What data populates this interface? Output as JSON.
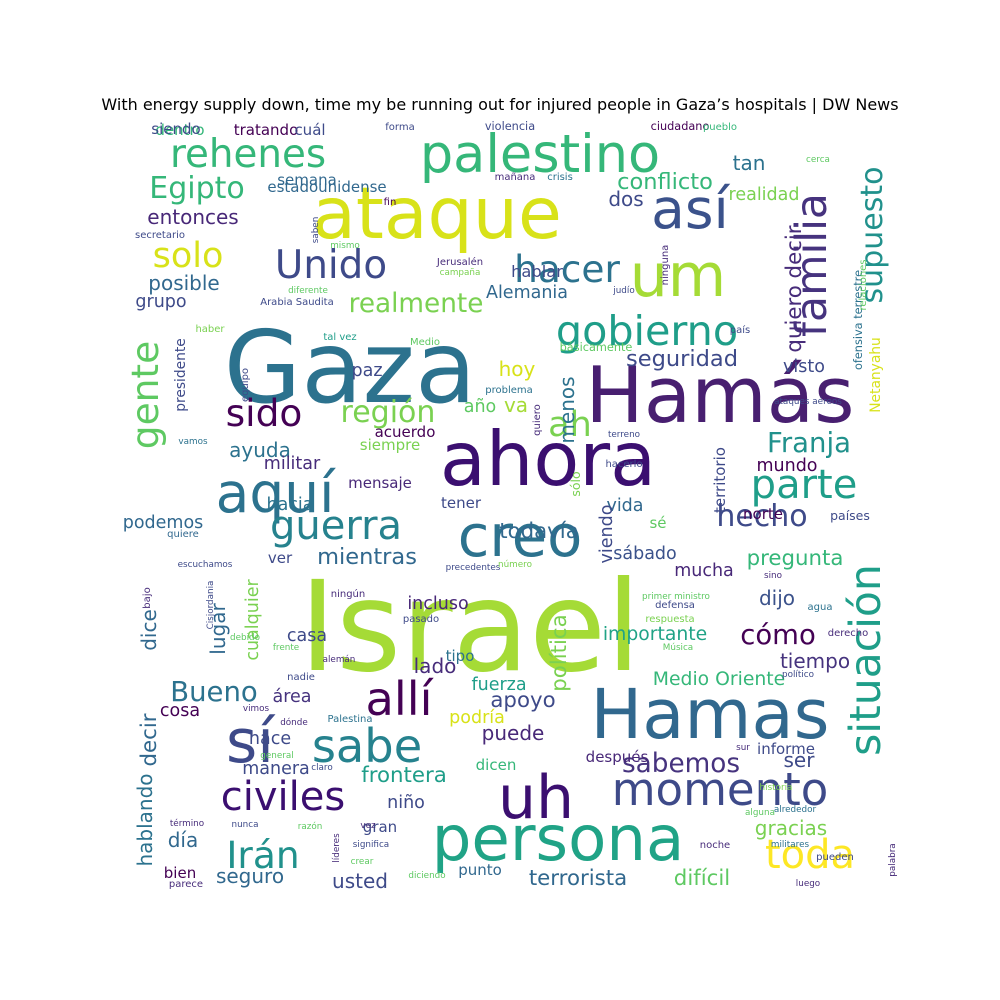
{
  "chart_data": {
    "type": "wordcloud",
    "title": "With energy supply down, time my be running out for injured people in Gaza’s hospitals | DW News",
    "words": [
      {
        "text": "Israel",
        "weight": 100,
        "color": "#a5db36"
      },
      {
        "text": "Gaza",
        "weight": 80,
        "color": "#2c728e"
      },
      {
        "text": "Hamás",
        "weight": 62,
        "color": "#481f70"
      },
      {
        "text": "ahora",
        "weight": 60,
        "color": "#3b0f70"
      },
      {
        "text": "ataque",
        "weight": 57,
        "color": "#d8e219"
      },
      {
        "text": "Hamas",
        "weight": 55,
        "color": "#31688e"
      },
      {
        "text": "persona",
        "weight": 50,
        "color": "#20a386"
      },
      {
        "text": "uh",
        "weight": 48,
        "color": "#3b0f70"
      },
      {
        "text": "um",
        "weight": 48,
        "color": "#a5db36"
      },
      {
        "text": "sí",
        "weight": 48,
        "color": "#3e4a89"
      },
      {
        "text": "creo",
        "weight": 46,
        "color": "#2c728e"
      },
      {
        "text": "así",
        "weight": 44,
        "color": "#3b528b"
      },
      {
        "text": "aquí",
        "weight": 44,
        "color": "#2c728e"
      },
      {
        "text": "palestino",
        "weight": 42,
        "color": "#35b779"
      },
      {
        "text": "allí",
        "weight": 37,
        "color": "#440154"
      },
      {
        "text": "sabe",
        "weight": 37,
        "color": "#26828e"
      },
      {
        "text": "momento",
        "weight": 36,
        "color": "#3e4a89"
      },
      {
        "text": "familia",
        "weight": 34,
        "color": "#46337e"
      },
      {
        "text": "situación",
        "weight": 34,
        "color": "#1f9e89"
      },
      {
        "text": "gobierno",
        "weight": 33,
        "color": "#1f9e89"
      },
      {
        "text": "civiles",
        "weight": 32,
        "color": "#3b0f70"
      },
      {
        "text": "parte",
        "weight": 32,
        "color": "#1f9e89"
      },
      {
        "text": "guerra",
        "weight": 32,
        "color": "#26828e"
      },
      {
        "text": "toda",
        "weight": 32,
        "color": "#fde725"
      },
      {
        "text": "Unido",
        "weight": 31,
        "color": "#3e4a89"
      },
      {
        "text": "rehenes",
        "weight": 31,
        "color": "#35b779"
      },
      {
        "text": "hacer",
        "weight": 30,
        "color": "#2c728e"
      },
      {
        "text": "gente",
        "weight": 30,
        "color": "#5ec962"
      },
      {
        "text": "sido",
        "weight": 30,
        "color": "#440154"
      },
      {
        "text": "Irán",
        "weight": 30,
        "color": "#21918c"
      },
      {
        "text": "solo",
        "weight": 28,
        "color": "#d8e219"
      },
      {
        "text": "ah",
        "weight": 28,
        "color": "#7ad151"
      },
      {
        "text": "región",
        "weight": 24,
        "color": "#7ad151"
      },
      {
        "text": "Egipto",
        "weight": 24,
        "color": "#35b779"
      },
      {
        "text": "supuesto",
        "weight": 24,
        "color": "#21918c"
      },
      {
        "text": "hecho",
        "weight": 24,
        "color": "#3e4a89"
      },
      {
        "text": "Franja",
        "weight": 22,
        "color": "#21918c"
      },
      {
        "text": "Bueno",
        "weight": 22,
        "color": "#2c728e"
      },
      {
        "text": "cómo",
        "weight": 22,
        "color": "#440154"
      },
      {
        "text": "sabemos",
        "weight": 21,
        "color": "#46337e"
      },
      {
        "text": "realmente",
        "weight": 21,
        "color": "#7ad151"
      },
      {
        "text": "mientras",
        "weight": 18,
        "color": "#31688e"
      },
      {
        "text": "seguridad",
        "weight": 18,
        "color": "#3e4a89"
      },
      {
        "text": "conflicto",
        "weight": 18,
        "color": "#35b779"
      },
      {
        "text": "pregunta",
        "weight": 17,
        "color": "#35b779"
      },
      {
        "text": "todavía",
        "weight": 17,
        "color": "#31688e"
      },
      {
        "text": "política",
        "weight": 17,
        "color": "#7ad151"
      },
      {
        "text": "quiero decir",
        "weight": 17,
        "color": "#472c7a"
      },
      {
        "text": "apoyo",
        "weight": 17,
        "color": "#3e4a89"
      },
      {
        "text": "frontera",
        "weight": 17,
        "color": "#1f9e89"
      },
      {
        "text": "terrorista",
        "weight": 17,
        "color": "#31688e"
      },
      {
        "text": "difícil",
        "weight": 17,
        "color": "#5ec962"
      },
      {
        "text": "decir",
        "weight": 17,
        "color": "#31688e"
      },
      {
        "text": "hablando",
        "weight": 16,
        "color": "#2c728e"
      },
      {
        "text": "posible",
        "weight": 16,
        "color": "#31688e"
      },
      {
        "text": "entonces",
        "weight": 16,
        "color": "#482878"
      },
      {
        "text": "dos",
        "weight": 16,
        "color": "#3e4a89"
      },
      {
        "text": "tan",
        "weight": 16,
        "color": "#2c728e"
      },
      {
        "text": "hoy",
        "weight": 16,
        "color": "#d8e219"
      },
      {
        "text": "va",
        "weight": 16,
        "color": "#a5db36"
      },
      {
        "text": "lugar",
        "weight": 16,
        "color": "#31688e"
      },
      {
        "text": "dijo",
        "weight": 16,
        "color": "#3b528b"
      },
      {
        "text": "tiempo",
        "weight": 16,
        "color": "#46337e"
      },
      {
        "text": "usted",
        "weight": 16,
        "color": "#3e4a89"
      },
      {
        "text": "seguro",
        "weight": 16,
        "color": "#31688e"
      },
      {
        "text": "día",
        "weight": 16,
        "color": "#31688e"
      },
      {
        "text": "gracias",
        "weight": 16,
        "color": "#7ad151"
      },
      {
        "text": "ser",
        "weight": 16,
        "color": "#3e4a89"
      },
      {
        "text": "puede",
        "weight": 16,
        "color": "#482878"
      },
      {
        "text": "dice",
        "weight": 16,
        "color": "#31688e"
      },
      {
        "text": "lado",
        "weight": 16,
        "color": "#472c7a"
      },
      {
        "text": "menos",
        "weight": 16,
        "color": "#2c728e"
      },
      {
        "text": "ayuda",
        "weight": 16,
        "color": "#2c728e"
      },
      {
        "text": "Medio Oriente",
        "weight": 15,
        "color": "#35b779"
      },
      {
        "text": "importante",
        "weight": 15,
        "color": "#20a386"
      },
      {
        "text": "realidad",
        "weight": 14,
        "color": "#7ad151"
      },
      {
        "text": "grupo",
        "weight": 14,
        "color": "#3e4a89"
      },
      {
        "text": "paz",
        "weight": 14,
        "color": "#3e4a89"
      },
      {
        "text": "militar",
        "weight": 14,
        "color": "#472c7a"
      },
      {
        "text": "hacia",
        "weight": 14,
        "color": "#2c728e"
      },
      {
        "text": "podemos",
        "weight": 14,
        "color": "#31688e"
      },
      {
        "text": "incluso",
        "weight": 14,
        "color": "#482878"
      },
      {
        "text": "cualquier",
        "weight": 14,
        "color": "#7ad151"
      },
      {
        "text": "casa",
        "weight": 14,
        "color": "#3e4a89"
      },
      {
        "text": "fuerza",
        "weight": 14,
        "color": "#1f9e89"
      },
      {
        "text": "área",
        "weight": 14,
        "color": "#46337e"
      },
      {
        "text": "cosa",
        "weight": 14,
        "color": "#440154"
      },
      {
        "text": "hace",
        "weight": 14,
        "color": "#3e4a89"
      },
      {
        "text": "podría",
        "weight": 14,
        "color": "#d8e219"
      },
      {
        "text": "manera",
        "weight": 14,
        "color": "#3e4a89"
      },
      {
        "text": "niño",
        "weight": 14,
        "color": "#3e4a89"
      },
      {
        "text": "sábado",
        "weight": 14,
        "color": "#3b528b"
      },
      {
        "text": "mucha",
        "weight": 14,
        "color": "#482878"
      },
      {
        "text": "vida",
        "weight": 14,
        "color": "#31688e"
      },
      {
        "text": "viendo",
        "weight": 14,
        "color": "#3e4a89"
      },
      {
        "text": "año",
        "weight": 14,
        "color": "#5ec962"
      },
      {
        "text": "visto",
        "weight": 14,
        "color": "#3e4a89"
      },
      {
        "text": "mundo",
        "weight": 14,
        "color": "#440154"
      },
      {
        "text": "Alemania",
        "weight": 14,
        "color": "#31688e"
      },
      {
        "text": "hablar",
        "weight": 13,
        "color": "#3e4a89"
      },
      {
        "text": "estadounidense",
        "weight": 12,
        "color": "#31688e"
      },
      {
        "text": "tratando",
        "weight": 12,
        "color": "#440154"
      },
      {
        "text": "dentro",
        "weight": 12,
        "color": "#35b779"
      },
      {
        "text": "cuál",
        "weight": 12,
        "color": "#3e4a89"
      },
      {
        "text": "semana",
        "weight": 12,
        "color": "#31688e"
      },
      {
        "text": "siendo",
        "weight": 12,
        "color": "#3e4a89"
      },
      {
        "text": "siempre",
        "weight": 12,
        "color": "#7ad151"
      },
      {
        "text": "acuerdo",
        "weight": 12,
        "color": "#440154"
      },
      {
        "text": "mensaje",
        "weight": 12,
        "color": "#482878"
      },
      {
        "text": "tener",
        "weight": 12,
        "color": "#3e4a89"
      },
      {
        "text": "ver",
        "weight": 12,
        "color": "#3e4a89"
      },
      {
        "text": "tipo",
        "weight": 12,
        "color": "#2c728e"
      },
      {
        "text": "informe",
        "weight": 12,
        "color": "#3e4a89"
      },
      {
        "text": "dicen",
        "weight": 12,
        "color": "#35b779"
      },
      {
        "text": "después",
        "weight": 12,
        "color": "#482878"
      },
      {
        "text": "norte",
        "weight": 12,
        "color": "#440154"
      },
      {
        "text": "territorio",
        "weight": 12,
        "color": "#3e4a89"
      },
      {
        "text": "presidente",
        "weight": 11,
        "color": "#3e4a89"
      },
      {
        "text": "Netanyahu",
        "weight": 11,
        "color": "#d8e219"
      },
      {
        "text": "sólo",
        "weight": 10,
        "color": "#7ad151"
      },
      {
        "text": "punto",
        "weight": 12,
        "color": "#31688e"
      },
      {
        "text": "gran",
        "weight": 12,
        "color": "#3e4a89"
      },
      {
        "text": "bien",
        "weight": 12,
        "color": "#440154"
      },
      {
        "text": "sé",
        "weight": 12,
        "color": "#5ec962"
      },
      {
        "text": "países",
        "weight": 10,
        "color": "#3e4a89"
      },
      {
        "text": "ofensiva terrestre",
        "weight": 9,
        "color": "#2c728e"
      },
      {
        "text": "relaciones",
        "weight": 8,
        "color": "#5ec962"
      },
      {
        "text": "ciudadano",
        "weight": 9,
        "color": "#440154"
      },
      {
        "text": "pueblo",
        "weight": 8,
        "color": "#35b779"
      },
      {
        "text": "violencia",
        "weight": 9,
        "color": "#3e4a89"
      },
      {
        "text": "forma",
        "weight": 8,
        "color": "#3e4a89"
      },
      {
        "text": "mañana",
        "weight": 8,
        "color": "#472c7a"
      },
      {
        "text": "crisis",
        "weight": 8,
        "color": "#2c728e"
      },
      {
        "text": "fin",
        "weight": 8,
        "color": "#440154"
      },
      {
        "text": "saben",
        "weight": 7,
        "color": "#3e4a89"
      },
      {
        "text": "mismo",
        "weight": 7,
        "color": "#5ec962"
      },
      {
        "text": "Jerusalén",
        "weight": 8,
        "color": "#472c7a"
      },
      {
        "text": "campaña",
        "weight": 7,
        "color": "#7ad151"
      },
      {
        "text": "ninguna",
        "weight": 8,
        "color": "#472c7a"
      },
      {
        "text": "judío",
        "weight": 7,
        "color": "#3e4a89"
      },
      {
        "text": "país",
        "weight": 8,
        "color": "#3e4a89"
      },
      {
        "text": "secretario",
        "weight": 8,
        "color": "#3e4a89"
      },
      {
        "text": "diferente",
        "weight": 7,
        "color": "#5ec962"
      },
      {
        "text": "Arabia Saudita",
        "weight": 8,
        "color": "#3e4a89"
      },
      {
        "text": "haber",
        "weight": 8,
        "color": "#7ad151"
      },
      {
        "text": "tal vez",
        "weight": 8,
        "color": "#1f9e89"
      },
      {
        "text": "Medio",
        "weight": 8,
        "color": "#5ec962"
      },
      {
        "text": "equipo",
        "weight": 8,
        "color": "#3e4a89"
      },
      {
        "text": "básicamente",
        "weight": 9,
        "color": "#5ec962"
      },
      {
        "text": "problema",
        "weight": 8,
        "color": "#2c728e"
      },
      {
        "text": "quiero",
        "weight": 8,
        "color": "#472c7a"
      },
      {
        "text": "ataques aéreos",
        "weight": 7,
        "color": "#3e4a89"
      },
      {
        "text": "vamos",
        "weight": 7,
        "color": "#2c728e"
      },
      {
        "text": "terreno",
        "weight": 7,
        "color": "#3e4a89"
      },
      {
        "text": "hacerlo",
        "weight": 8,
        "color": "#3e4a89"
      },
      {
        "text": "quiere",
        "weight": 8,
        "color": "#31688e"
      },
      {
        "text": "escuchamos",
        "weight": 7,
        "color": "#3e4a89"
      },
      {
        "text": "bajo",
        "weight": 8,
        "color": "#472c7a"
      },
      {
        "text": "Cisjordania",
        "weight": 7,
        "color": "#3e4a89"
      },
      {
        "text": "precedentes",
        "weight": 7,
        "color": "#3e4a89"
      },
      {
        "text": "número",
        "weight": 7,
        "color": "#7ad151"
      },
      {
        "text": "sino",
        "weight": 7,
        "color": "#472c7a"
      },
      {
        "text": "primer ministro",
        "weight": 7,
        "color": "#5ec962"
      },
      {
        "text": "defensa",
        "weight": 8,
        "color": "#3e4a89"
      },
      {
        "text": "ningún",
        "weight": 8,
        "color": "#472c7a"
      },
      {
        "text": "pasado",
        "weight": 8,
        "color": "#3e4a89"
      },
      {
        "text": "respuesta",
        "weight": 8,
        "color": "#7ad151"
      },
      {
        "text": "agua",
        "weight": 8,
        "color": "#2c728e"
      },
      {
        "text": "derecho",
        "weight": 8,
        "color": "#472c7a"
      },
      {
        "text": "debido",
        "weight": 7,
        "color": "#5ec962"
      },
      {
        "text": "frente",
        "weight": 7,
        "color": "#5ec962"
      },
      {
        "text": "Música",
        "weight": 7,
        "color": "#5ec962"
      },
      {
        "text": "alemán",
        "weight": 7,
        "color": "#472c7a"
      },
      {
        "text": "nadie",
        "weight": 8,
        "color": "#3e4a89"
      },
      {
        "text": "político",
        "weight": 7,
        "color": "#3e4a89"
      },
      {
        "text": "vimos",
        "weight": 7,
        "color": "#472c7a"
      },
      {
        "text": "dónde",
        "weight": 7,
        "color": "#472c7a"
      },
      {
        "text": "Palestina",
        "weight": 8,
        "color": "#2c728e"
      },
      {
        "text": "general",
        "weight": 7,
        "color": "#5ec962"
      },
      {
        "text": "claro",
        "weight": 7,
        "color": "#3e4a89"
      },
      {
        "text": "sur",
        "weight": 7,
        "color": "#472c7a"
      },
      {
        "text": "historia",
        "weight": 7,
        "color": "#7ad151"
      },
      {
        "text": "alguna",
        "weight": 7,
        "color": "#5ec962"
      },
      {
        "text": "alrededor",
        "weight": 7,
        "color": "#2c728e"
      },
      {
        "text": "término",
        "weight": 7,
        "color": "#472c7a"
      },
      {
        "text": "nunca",
        "weight": 7,
        "color": "#3e4a89"
      },
      {
        "text": "razón",
        "weight": 7,
        "color": "#5ec962"
      },
      {
        "text": "vez",
        "weight": 7,
        "color": "#472c7a"
      },
      {
        "text": "significa",
        "weight": 7,
        "color": "#3e4a89"
      },
      {
        "text": "militares",
        "weight": 7,
        "color": "#2c728e"
      },
      {
        "text": "noche",
        "weight": 8,
        "color": "#472c7a"
      },
      {
        "text": "pueden",
        "weight": 8,
        "color": "#3e4a89"
      },
      {
        "text": "palabra",
        "weight": 7,
        "color": "#472c7a"
      },
      {
        "text": "líderes",
        "weight": 7,
        "color": "#472c7a"
      },
      {
        "text": "crear",
        "weight": 7,
        "color": "#5ec962"
      },
      {
        "text": "parece",
        "weight": 8,
        "color": "#472c7a"
      },
      {
        "text": "diciendo",
        "weight": 7,
        "color": "#5ec962"
      },
      {
        "text": "luego",
        "weight": 7,
        "color": "#472c7a"
      },
      {
        "text": "cerca",
        "weight": 7,
        "color": "#5ec962"
      },
      {
        "text": "pueda",
        "weight": 7,
        "color": "#3e4a89"
      }
    ]
  }
}
